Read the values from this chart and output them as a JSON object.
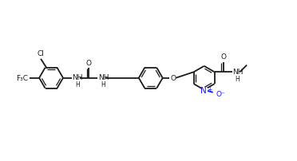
{
  "bg": "#ffffff",
  "bc": "#1a1a1a",
  "nc": "#1414ff",
  "lw": 1.3,
  "lw2": 0.9,
  "fs": 6.5,
  "fs_small": 5.5,
  "figsize": [
    3.72,
    2.03
  ],
  "dpi": 100,
  "r": 0.38,
  "ao_flat": 0,
  "ao_point": 90,
  "xlim": [
    0,
    9.3
  ],
  "ylim": [
    0.2,
    5.36
  ],
  "ro": 0.065,
  "shrink": 0.06
}
